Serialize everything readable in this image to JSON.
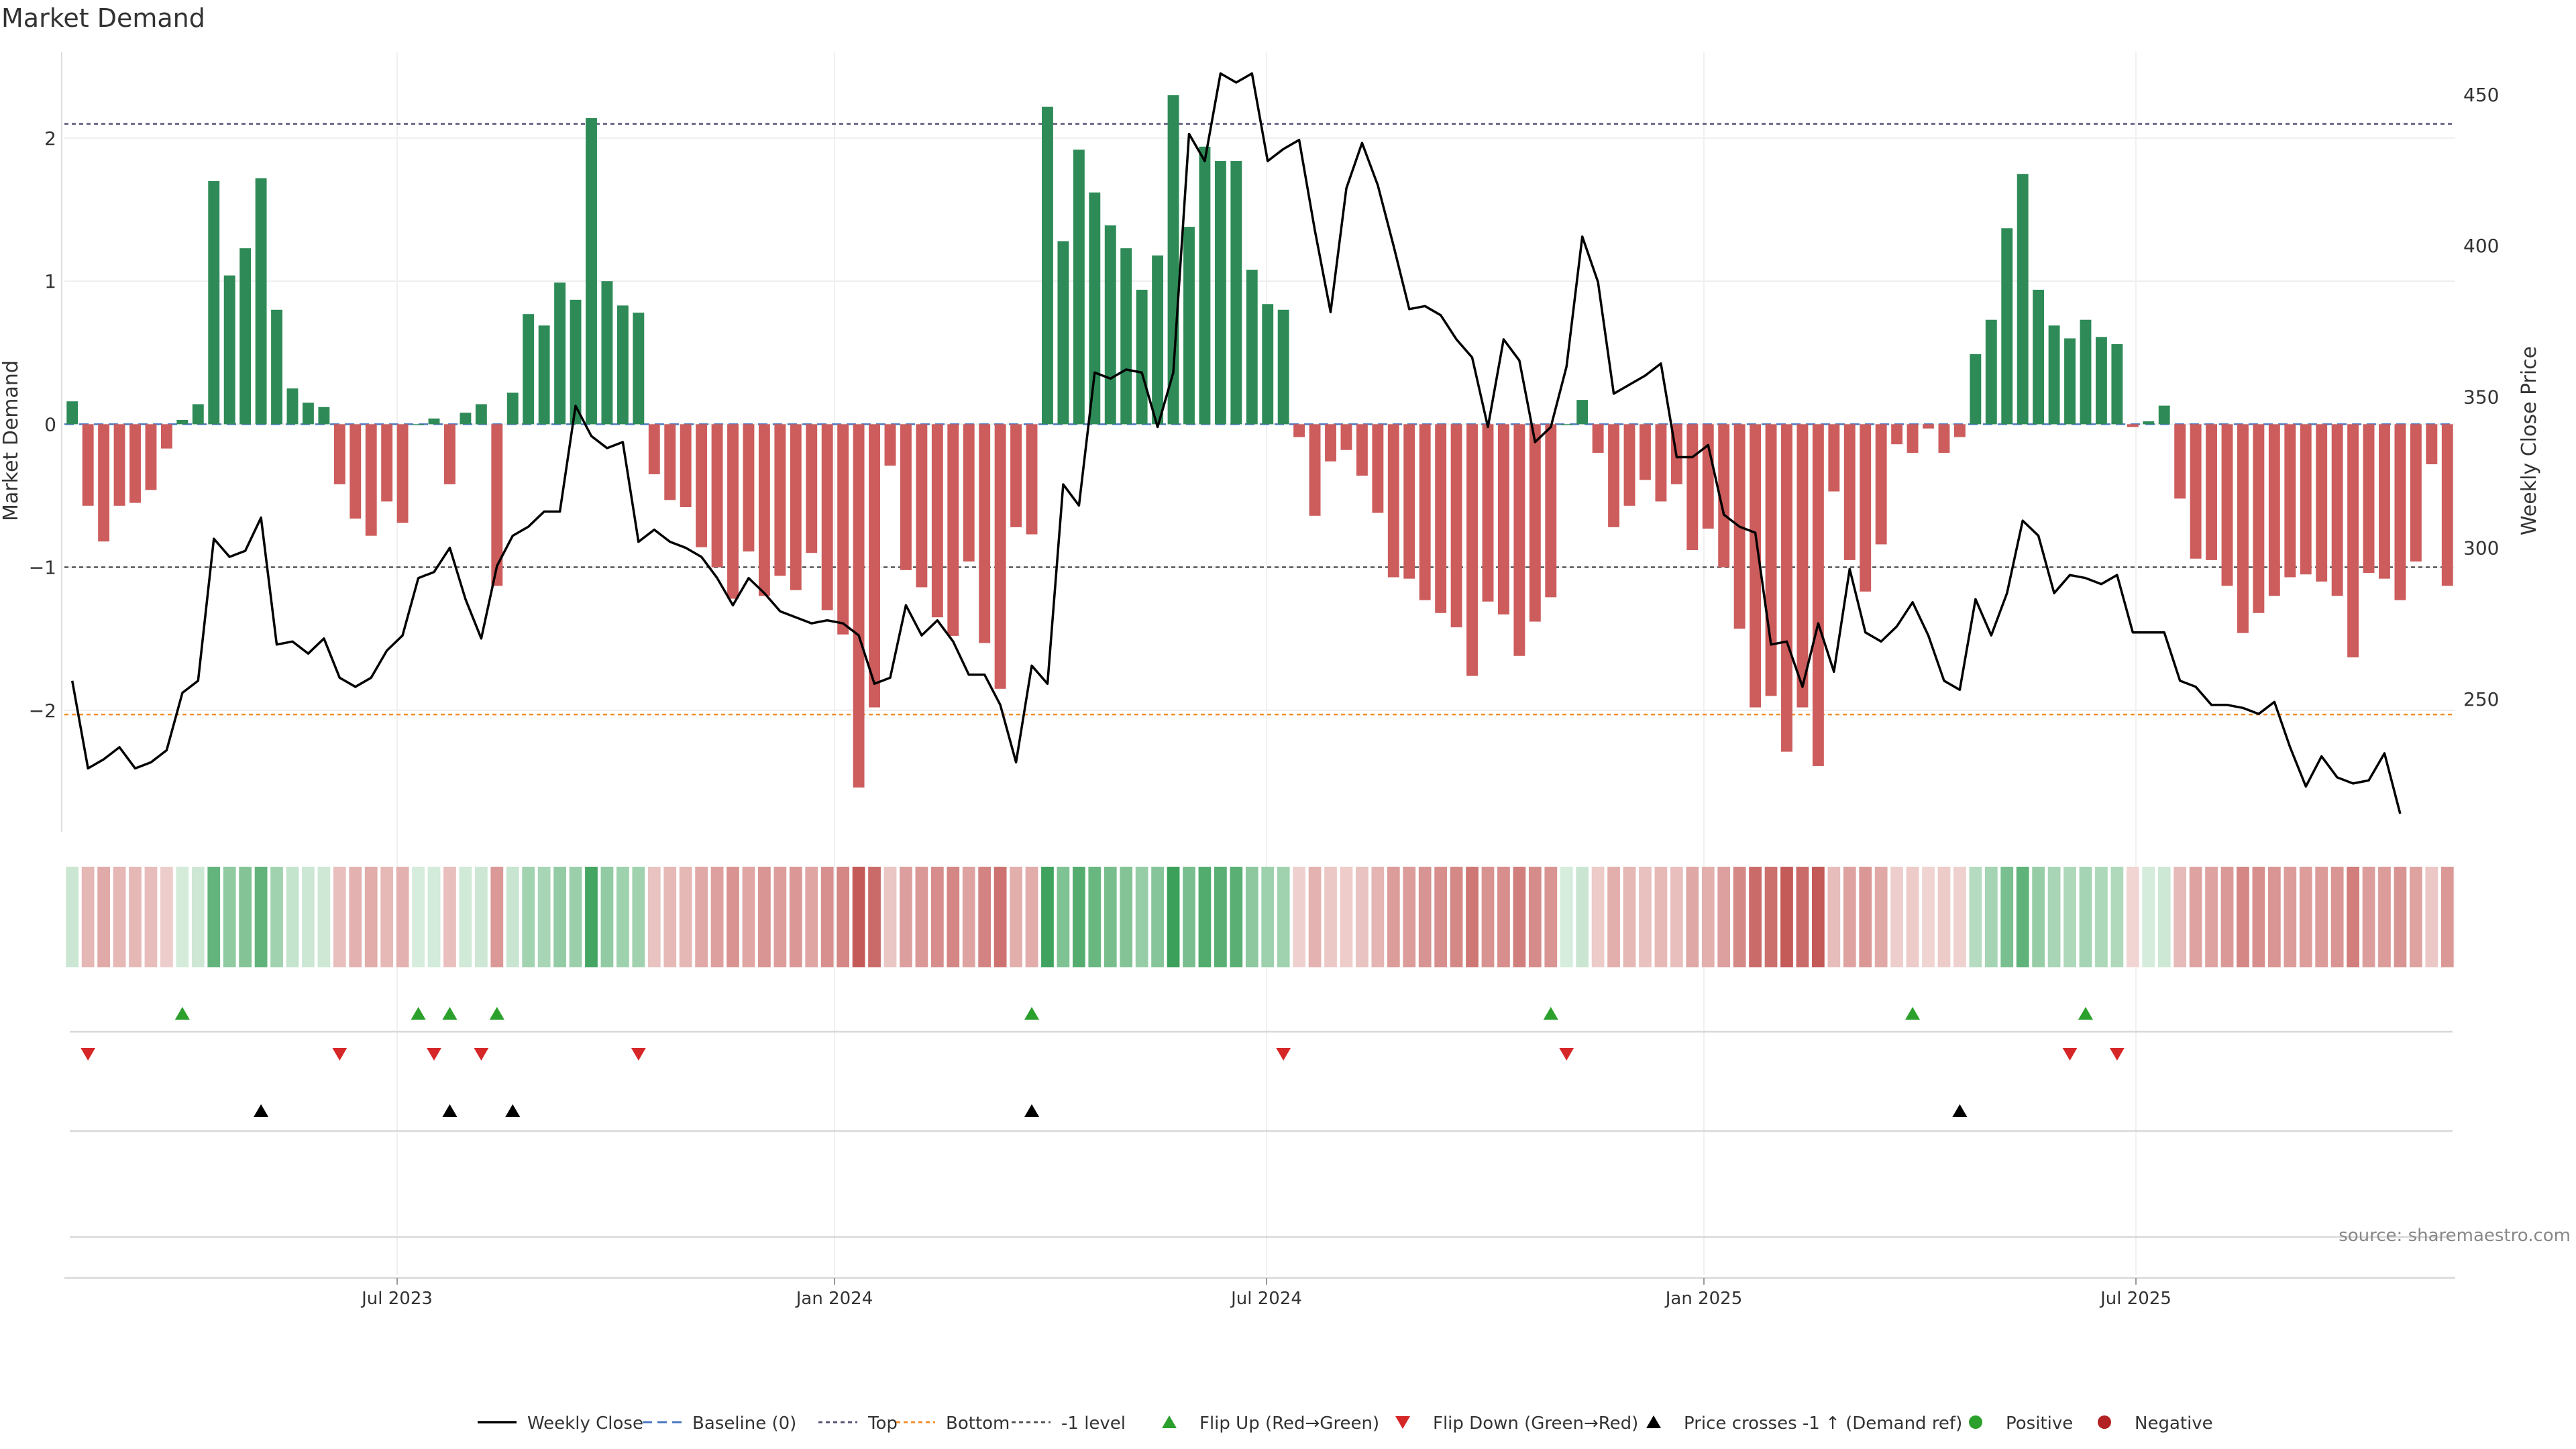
{
  "chart_data": {
    "type": "bar",
    "title": "Market Demand",
    "ylabel": "Market Demand",
    "y2label": "Weekly Close Price",
    "source": "source: sharemaestro.com",
    "ylim": [
      -2.85,
      2.6
    ],
    "y2lim": [
      206,
      464
    ],
    "yticks": [
      "2",
      "1",
      "0",
      "−1",
      "−2"
    ],
    "y2ticks": [
      "450",
      "400",
      "350",
      "300",
      "250"
    ],
    "xticks": [
      "Jul 2023",
      "Jan 2024",
      "Jul 2024",
      "Jan 2025",
      "Jul 2025"
    ],
    "reference_lines": {
      "top": 2.1,
      "bottom": -2.03,
      "minus_one": -1.0,
      "baseline": 0
    },
    "colors": {
      "positive": "#2e8b57",
      "negative": "#cd5c5c",
      "price": "#000000",
      "flip_up": "#2ca02c",
      "flip_down": "#d62728",
      "bottom_line": "#f28e2b",
      "ref_line": "#555555"
    },
    "demand": [
      0.16,
      -0.57,
      -0.82,
      -0.57,
      -0.55,
      -0.46,
      -0.17,
      0.03,
      0.14,
      1.7,
      1.04,
      1.23,
      1.72,
      0.8,
      0.25,
      0.15,
      0.12,
      -0.42,
      -0.66,
      -0.78,
      -0.54,
      -0.69,
      0,
      0.04,
      -0.42,
      0.08,
      0.14,
      -1.13,
      0.22,
      0.77,
      0.69,
      0.99,
      0.87,
      2.14,
      1.0,
      0.83,
      0.78,
      -0.35,
      -0.53,
      -0.58,
      -0.86,
      -1.0,
      -1.22,
      -0.89,
      -1.2,
      -1.06,
      -1.16,
      -0.9,
      -1.3,
      -1.47,
      -2.54,
      -1.98,
      -0.29,
      -1.02,
      -1.14,
      -1.35,
      -1.48,
      -0.96,
      -1.53,
      -1.85,
      -0.72,
      -0.77,
      2.22,
      1.28,
      1.92,
      1.62,
      1.39,
      1.23,
      0.94,
      1.18,
      2.3,
      1.38,
      1.94,
      1.84,
      1.84,
      1.08,
      0.84,
      0.8,
      -0.09,
      -0.64,
      -0.26,
      -0.18,
      -0.36,
      -0.62,
      -1.07,
      -1.08,
      -1.23,
      -1.32,
      -1.42,
      -1.76,
      -1.24,
      -1.33,
      -1.62,
      -1.38,
      -1.21,
      0,
      0.17,
      -0.2,
      -0.72,
      -0.57,
      -0.39,
      -0.54,
      -0.42,
      -0.88,
      -0.73,
      -1.0,
      -1.43,
      -1.98,
      -1.9,
      -2.29,
      -1.98,
      -2.39,
      -0.47,
      -0.95,
      -1.17,
      -0.84,
      -0.14,
      -0.2,
      -0.03,
      -0.2,
      -0.09,
      0.49,
      0.73,
      1.37,
      1.75,
      0.94,
      0.69,
      0.6,
      0.73,
      0.61,
      0.56,
      -0.02,
      0.02,
      0.13,
      -0.52,
      -0.94,
      -0.95,
      -1.13,
      -1.46,
      -1.32,
      -1.2,
      -1.07,
      -1.05,
      -1.1,
      -1.2,
      -1.63,
      -1.04,
      -1.08,
      -1.23,
      -0.96,
      -0.28,
      -1.13
    ],
    "price": [
      256,
      227,
      230,
      234,
      227,
      229,
      233,
      252,
      256,
      303,
      297,
      299,
      310,
      268,
      269,
      265,
      270,
      257,
      254,
      257,
      266,
      271,
      290,
      292,
      300,
      283,
      270,
      294,
      304,
      307,
      312,
      312,
      347,
      337,
      333,
      335,
      302,
      306,
      302,
      300,
      297,
      290,
      281,
      290,
      285,
      279,
      277,
      275,
      276,
      275,
      271,
      255,
      257,
      281,
      271,
      276,
      269,
      258,
      258,
      248,
      229,
      261,
      255,
      321,
      314,
      358,
      356,
      359,
      358,
      340,
      358,
      437,
      428,
      457,
      454,
      457,
      428,
      432,
      435,
      405,
      378,
      419,
      434,
      420,
      400,
      379,
      380,
      377,
      369,
      363,
      340,
      369,
      362,
      335,
      340,
      360,
      403,
      388,
      351,
      354,
      357,
      361,
      330,
      330,
      334,
      311,
      307,
      305,
      268,
      269,
      254,
      275,
      259,
      293,
      272,
      269,
      274,
      282,
      271,
      256,
      253,
      283,
      271,
      285,
      309,
      304,
      285,
      291,
      290,
      288,
      291,
      272,
      272,
      272,
      256,
      254,
      248,
      248,
      247,
      245,
      249,
      234,
      221,
      231,
      224,
      222,
      223,
      232,
      212
    ],
    "flip_up_idx": [
      7,
      22,
      24,
      27,
      61,
      94,
      117,
      128
    ],
    "flip_down_idx": [
      1,
      17,
      23,
      26,
      36,
      77,
      95,
      127,
      130
    ],
    "cross_idx": [
      12,
      24,
      28,
      61,
      120
    ],
    "legend": [
      "Weekly Close",
      "Baseline (0)",
      "Top",
      "Bottom",
      "-1 level",
      "Flip Up (Red→Green)",
      "Flip Down (Green→Red)",
      "Price crosses -1 ↑ (Demand ref)",
      "Positive",
      "Negative"
    ]
  }
}
